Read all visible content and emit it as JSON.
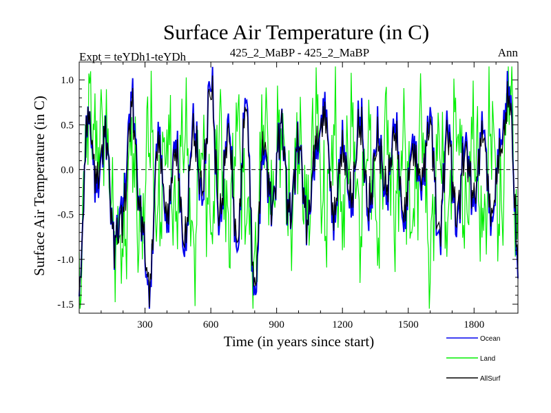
{
  "chart_data": {
    "type": "line",
    "title": "Surface Air Temperature (in C)",
    "subtitle_left": "Expt = teYDh1-teYDh",
    "subtitle_center": "425_2_MaBP - 425_2_MaBP",
    "subtitle_right": "Ann",
    "xlabel": "Time (in years since start)",
    "ylabel": "Surface Air Temperature (in C)",
    "xlim": [
      0,
      2000
    ],
    "ylim": [
      -1.6,
      1.2
    ],
    "xticks": [
      300,
      600,
      900,
      1200,
      1500,
      1800
    ],
    "xtick_labels": [
      "300",
      "600",
      "900",
      "1200",
      "1500",
      "1800"
    ],
    "yticks": [
      1.0,
      0.5,
      0.0,
      -0.5,
      -1.0,
      -1.5
    ],
    "ytick_labels": [
      "1.0",
      "0.5",
      "0.0",
      "-0.5",
      "-1.0",
      "-1.5"
    ],
    "zero_line": "dashed",
    "legend_position": "bottom-right",
    "series": [
      {
        "name": "Land",
        "color": "#00ee00",
        "x": [
          0,
          40,
          80,
          120,
          160,
          200,
          240,
          280,
          320,
          360,
          400,
          440,
          480,
          520,
          560,
          600,
          640,
          680,
          720,
          760,
          800,
          840,
          880,
          920,
          960,
          1000,
          1040,
          1080,
          1120,
          1160,
          1200,
          1240,
          1280,
          1320,
          1360,
          1400,
          1440,
          1480,
          1520,
          1560,
          1600,
          1640,
          1680,
          1720,
          1760,
          1800,
          1840,
          1880,
          1920,
          1960,
          2000
        ],
        "values": [
          -1.4,
          0.7,
          0.3,
          0.5,
          -0.7,
          -0.9,
          0.3,
          -0.8,
          0.5,
          -0.6,
          0.4,
          -0.5,
          0.5,
          -0.9,
          0.3,
          -0.6,
          0.4,
          -0.7,
          0.5,
          -0.4,
          -1.2,
          0.6,
          -0.3,
          0.5,
          -0.6,
          0.3,
          -0.5,
          0.6,
          -0.6,
          0.4,
          -0.5,
          0.5,
          -0.6,
          0.4,
          -0.7,
          0.5,
          -0.5,
          0.3,
          -0.6,
          0.5,
          -1.0,
          0.4,
          -0.6,
          0.6,
          -0.5,
          0.4,
          -0.7,
          0.5,
          -0.6,
          1.0,
          -0.8
        ]
      },
      {
        "name": "Ocean",
        "color": "#0000ee",
        "x": [
          0,
          40,
          80,
          120,
          160,
          200,
          240,
          280,
          320,
          360,
          400,
          440,
          480,
          520,
          560,
          600,
          640,
          680,
          720,
          760,
          800,
          840,
          880,
          920,
          960,
          1000,
          1040,
          1080,
          1120,
          1160,
          1200,
          1240,
          1280,
          1320,
          1360,
          1400,
          1440,
          1480,
          1520,
          1560,
          1600,
          1640,
          1680,
          1720,
          1760,
          1800,
          1840,
          1880,
          1920,
          1960,
          2000
        ],
        "values": [
          -1.3,
          0.6,
          -0.2,
          0.4,
          -0.8,
          -0.4,
          0.8,
          -0.5,
          -1.4,
          0.4,
          -0.6,
          0.3,
          -0.9,
          0.5,
          -0.3,
          1.0,
          -0.6,
          0.5,
          -0.9,
          0.8,
          -1.4,
          0.2,
          -0.4,
          0.5,
          -0.5,
          0.3,
          -0.6,
          0.2,
          0.7,
          -0.6,
          0.3,
          -0.4,
          0.6,
          -0.5,
          0.4,
          -0.3,
          0.5,
          -0.6,
          0.3,
          -0.2,
          0.6,
          -0.8,
          0.5,
          -0.6,
          0.3,
          -0.4,
          0.5,
          -0.6,
          0.3,
          0.9,
          -1.0
        ]
      },
      {
        "name": "AllSurf",
        "color": "#000000",
        "x": [
          0,
          40,
          80,
          120,
          160,
          200,
          240,
          280,
          320,
          360,
          400,
          440,
          480,
          520,
          560,
          600,
          640,
          680,
          720,
          760,
          800,
          840,
          880,
          920,
          960,
          1000,
          1040,
          1080,
          1120,
          1160,
          1200,
          1240,
          1280,
          1320,
          1360,
          1400,
          1440,
          1480,
          1520,
          1560,
          1600,
          1640,
          1680,
          1720,
          1760,
          1800,
          1840,
          1880,
          1920,
          1960,
          2000
        ],
        "values": [
          -1.3,
          0.6,
          -0.1,
          0.4,
          -0.8,
          -0.5,
          0.7,
          -0.5,
          -1.3,
          0.3,
          -0.5,
          0.2,
          -0.8,
          0.4,
          -0.2,
          0.9,
          -0.5,
          0.4,
          -0.8,
          0.7,
          -1.3,
          0.3,
          -0.4,
          0.5,
          -0.5,
          0.3,
          -0.6,
          0.3,
          0.6,
          -0.5,
          0.2,
          -0.3,
          0.5,
          -0.4,
          0.3,
          -0.2,
          0.4,
          -0.5,
          0.2,
          -0.1,
          0.5,
          -0.7,
          0.4,
          -0.5,
          0.2,
          -0.3,
          0.4,
          -0.5,
          0.2,
          0.8,
          -0.9
        ]
      }
    ]
  }
}
